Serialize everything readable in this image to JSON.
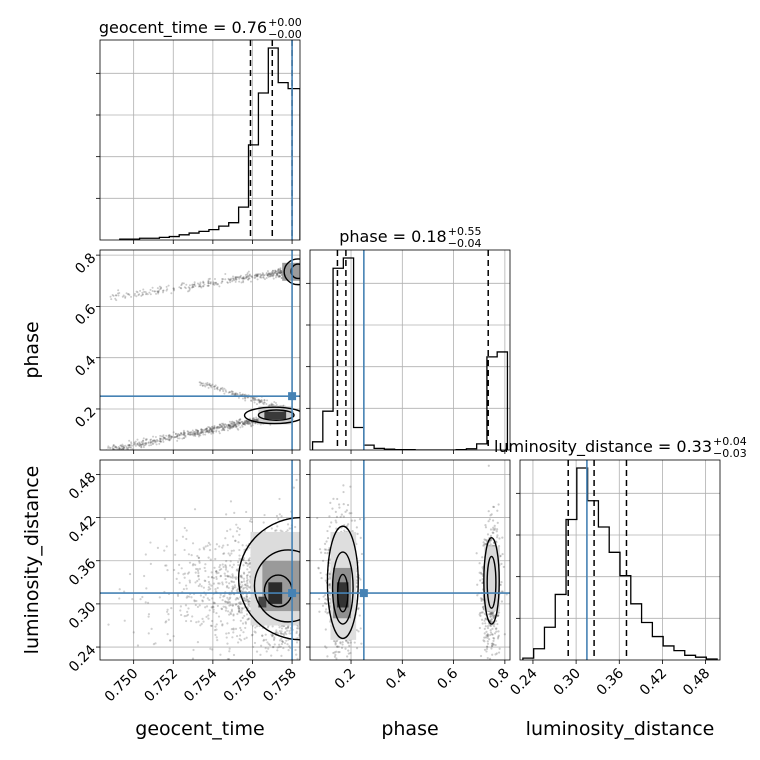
{
  "colors": {
    "truth": "#4682b4",
    "hist": "#000000",
    "grid": "#b0b0b0",
    "scatter": "#555555"
  },
  "chart_data": {
    "type": "corner",
    "parameters": [
      "geocent_time",
      "phase",
      "luminosity_distance"
    ],
    "axis_labels": [
      "geocent_time",
      "phase",
      "luminosity_distance"
    ],
    "ranges": [
      [
        0.7483,
        0.7584
      ],
      [
        0.04,
        0.82
      ],
      [
        0.222,
        0.5
      ]
    ],
    "ticks": [
      {
        "values": [
          0.75,
          0.752,
          0.754,
          0.756,
          0.758
        ],
        "labels": [
          "0.750",
          "0.752",
          "0.754",
          "0.756",
          "0.758"
        ]
      },
      {
        "values": [
          0.2,
          0.4,
          0.6,
          0.8
        ],
        "labels": [
          "0.2",
          "0.4",
          "0.6",
          "0.8"
        ]
      },
      {
        "values": [
          0.24,
          0.3,
          0.36,
          0.42,
          0.48
        ],
        "labels": [
          "0.24",
          "0.30",
          "0.36",
          "0.42",
          "0.48"
        ]
      }
    ],
    "truths": [
      0.758,
      0.25,
      0.315
    ],
    "quantiles": [
      [
        0.7559,
        0.757,
        0.758
      ],
      [
        0.147,
        0.18,
        0.735
      ],
      [
        0.289,
        0.325,
        0.37
      ]
    ],
    "titles": [
      {
        "name": "geocent_time",
        "median": "0.76",
        "plus": "+0.00",
        "minus": "−0.00"
      },
      {
        "name": "phase",
        "median": "0.18",
        "plus": "+0.55",
        "minus": "−0.04"
      },
      {
        "name": "luminosity_distance",
        "median": "0.33",
        "plus": "+0.04",
        "minus": "−0.03"
      }
    ],
    "histograms": [
      {
        "edges": [
          0.7493,
          0.7498,
          0.7503,
          0.7508,
          0.7513,
          0.7518,
          0.7523,
          0.7528,
          0.7533,
          0.7538,
          0.7543,
          0.7548,
          0.7553,
          0.7558,
          0.7563,
          0.7568,
          0.7573,
          0.7578,
          0.7584
        ],
        "counts": [
          1,
          1,
          2,
          2,
          3,
          4,
          6,
          8,
          10,
          12,
          16,
          20,
          38,
          110,
          170,
          222,
          182,
          175
        ]
      },
      {
        "edges": [
          0.05,
          0.09,
          0.13,
          0.17,
          0.21,
          0.25,
          0.29,
          0.33,
          0.37,
          0.41,
          0.45,
          0.49,
          0.53,
          0.57,
          0.61,
          0.65,
          0.69,
          0.73,
          0.77,
          0.81
        ],
        "counts": [
          20,
          95,
          445,
          470,
          55,
          12,
          4,
          2,
          1,
          1,
          0,
          0,
          0,
          0,
          1,
          3,
          15,
          228,
          240
        ]
      },
      {
        "edges": [
          0.226,
          0.241,
          0.256,
          0.271,
          0.286,
          0.301,
          0.316,
          0.331,
          0.346,
          0.361,
          0.376,
          0.391,
          0.406,
          0.421,
          0.436,
          0.451,
          0.466,
          0.481,
          0.496
        ],
        "counts": [
          2,
          12,
          35,
          70,
          150,
          205,
          170,
          142,
          115,
          90,
          60,
          40,
          25,
          15,
          10,
          5,
          3,
          1
        ]
      }
    ]
  }
}
